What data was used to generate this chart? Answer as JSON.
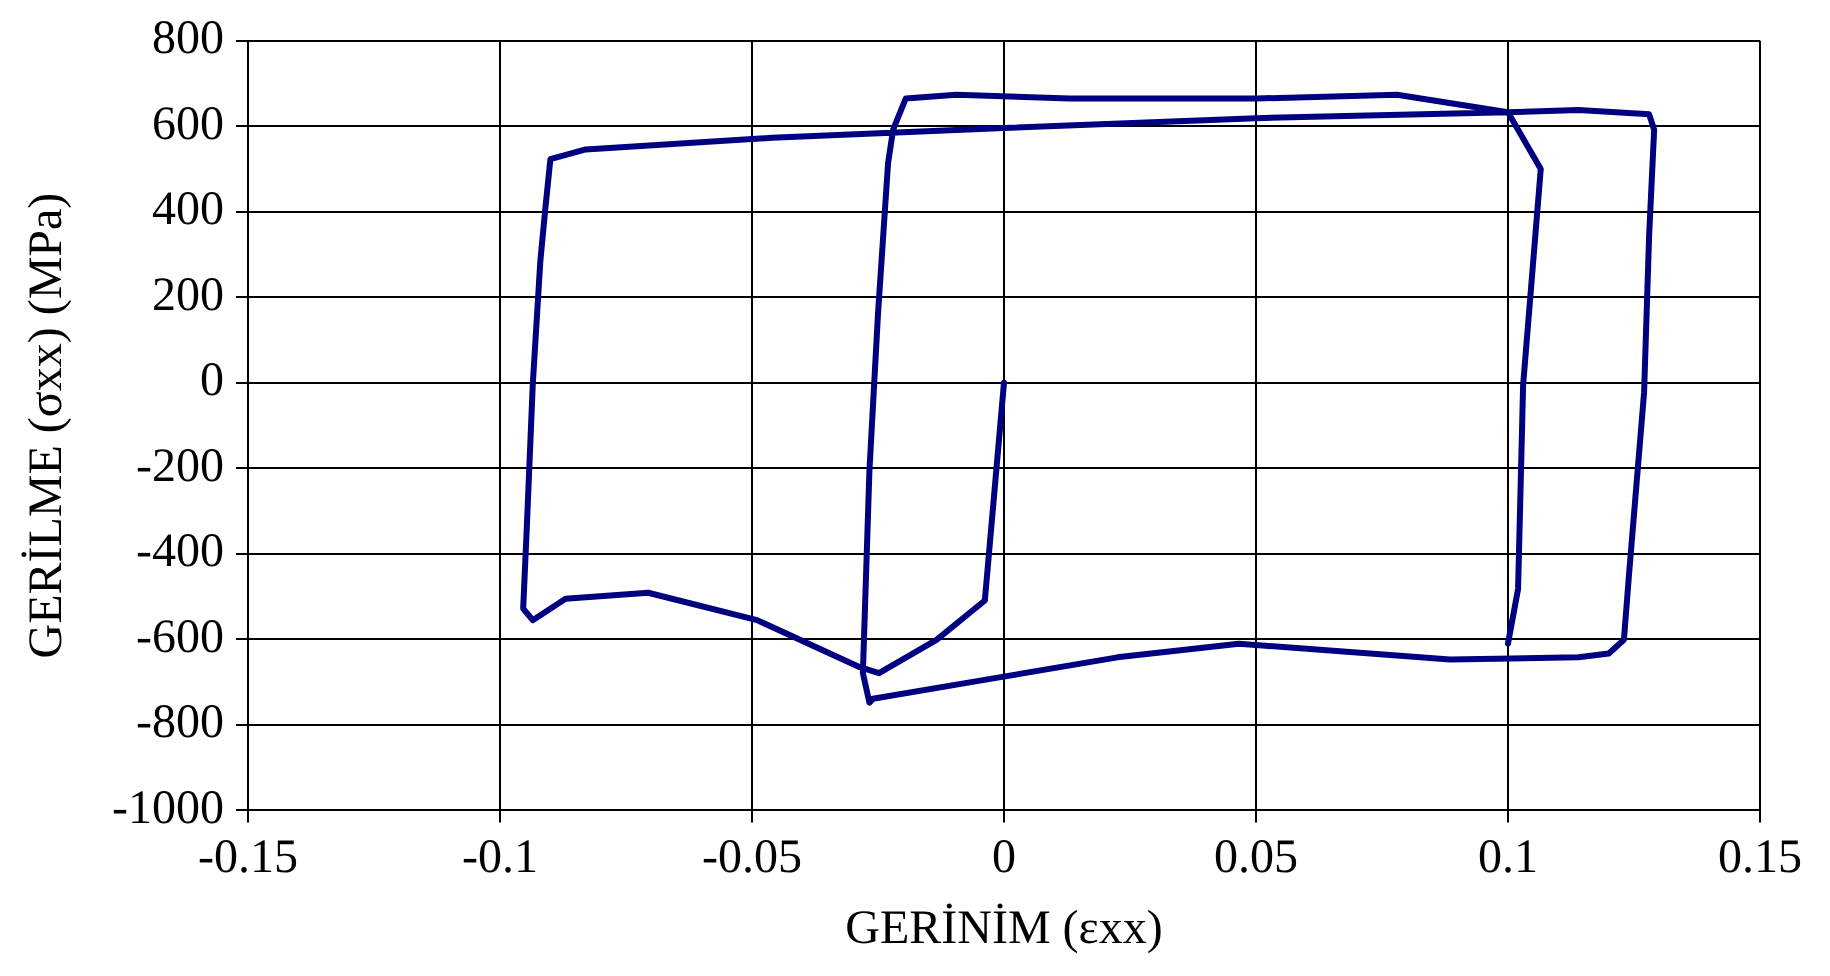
{
  "chart_data": {
    "type": "line",
    "xlabel": "GERİNİM (εxx)",
    "ylabel": "GERİLME (σxx) (MPa)",
    "xlim": [
      -0.15,
      0.15
    ],
    "xticks": [
      -0.15,
      -0.1,
      -0.05,
      0,
      0.05,
      0.1,
      0.15
    ],
    "ylim": [
      -1000,
      800
    ],
    "yticks": [
      -1000,
      -800,
      -600,
      -400,
      -200,
      0,
      200,
      400,
      600,
      800
    ],
    "grid": true,
    "legend": false,
    "marker": "none",
    "line_style": "solid",
    "series": [
      {
        "color": "#000080",
        "x": [
          0,
          -0.0038,
          -0.0134,
          -0.0248,
          -0.0286,
          -0.049,
          -0.0706,
          -0.087,
          -0.0935,
          -0.0954,
          -0.0947,
          -0.0935,
          -0.092,
          -0.091,
          -0.09,
          -0.083,
          -0.046,
          0,
          0.05,
          0.1,
          0.114,
          0.128,
          0.129,
          0.128,
          0.127,
          0.124,
          0.123,
          0.12,
          0.114,
          0.0885,
          0.0466,
          0.0225,
          -0.003,
          -0.026,
          -0.0267,
          -0.028,
          -0.0267,
          -0.025,
          -0.023,
          -0.022,
          -0.0195,
          -0.0095,
          0.013,
          0.05,
          0.078,
          0.1,
          0.1065,
          0.103,
          0.102,
          0.1
        ],
        "values": [
          0,
          -509,
          -601,
          -679,
          -665,
          -555,
          -491,
          -505,
          -555,
          -528,
          -344,
          -5,
          284,
          408,
          523,
          546,
          573,
          596,
          619,
          633,
          638,
          628,
          592,
          344,
          -23,
          -450,
          -601,
          -633,
          -642,
          -647,
          -610,
          -642,
          -693,
          -739,
          -748,
          -679,
          -206,
          161,
          514,
          592,
          665,
          674,
          665,
          665,
          674,
          633,
          500,
          -5,
          -482,
          -610
        ]
      }
    ]
  }
}
